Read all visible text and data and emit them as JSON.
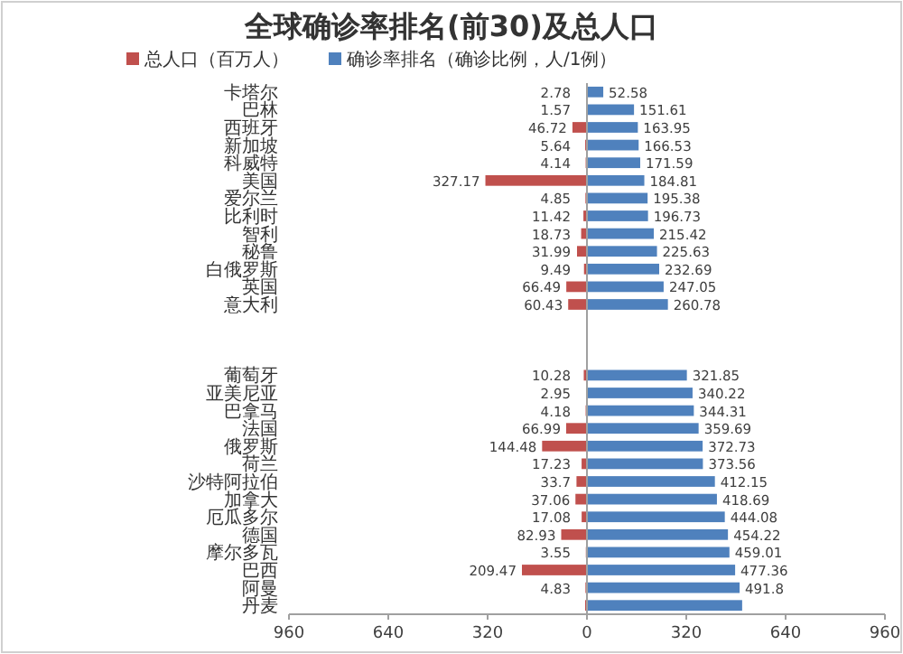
{
  "chart_data": {
    "type": "bar",
    "orientation": "horizontal",
    "title": "全球确诊率排名(前30)及总人口",
    "categories": [
      "卡塔尔",
      "巴林",
      "西班牙",
      "新加坡",
      "科威特",
      "美国",
      "爱尔兰",
      "比利时",
      "智利",
      "秘鲁",
      "白俄罗斯",
      "英国",
      "意大利",
      null,
      null,
      null,
      "葡萄牙",
      "亚美尼亚",
      "巴拿马",
      "法国",
      "俄罗斯",
      "荷兰",
      "沙特阿拉伯",
      "加拿大",
      "厄瓜多尔",
      "德国",
      "摩尔多瓦",
      "巴西",
      "阿曼",
      "丹麦"
    ],
    "series": [
      {
        "name": "总人口（百万人）",
        "color": "#c0504d",
        "axis": "x2",
        "values": [
          2.78,
          1.57,
          46.72,
          5.64,
          4.14,
          327.17,
          4.85,
          11.42,
          18.73,
          31.99,
          9.49,
          66.49,
          60.43,
          null,
          null,
          null,
          10.28,
          2.95,
          4.18,
          66.99,
          144.48,
          17.23,
          33.7,
          37.06,
          17.08,
          82.93,
          3.55,
          209.47,
          4.83,
          5.8
        ],
        "value_labels": [
          "2.78",
          "1.57",
          "46.72",
          "5.64",
          "4.14",
          "327.17",
          "4.85",
          "11.42",
          "18.73",
          "31.99",
          "9.49",
          "66.49",
          "60.43",
          null,
          null,
          null,
          "10.28",
          "2.95",
          "4.18",
          "66.99",
          "144.48",
          "17.23",
          "33.7",
          "37.06",
          "17.08",
          "82.93",
          "3.55",
          "209.47",
          "4.83",
          null
        ]
      },
      {
        "name": "确诊率排名（确诊比例，人/1例）",
        "color": "#4f81bd",
        "values": [
          52.58,
          151.61,
          163.95,
          166.53,
          171.59,
          184.81,
          195.38,
          196.73,
          215.42,
          225.63,
          232.69,
          247.05,
          260.78,
          null,
          null,
          null,
          321.85,
          340.22,
          344.31,
          359.69,
          372.73,
          373.56,
          412.15,
          418.69,
          444.08,
          454.22,
          459.01,
          477.36,
          491.8,
          500
        ],
        "value_labels": [
          "52.58",
          "151.61",
          "163.95",
          "166.53",
          "171.59",
          "184.81",
          "195.38",
          "196.73",
          "215.42",
          "225.63",
          "232.69",
          "247.05",
          "260.78",
          null,
          null,
          null,
          "321.85",
          "340.22",
          "344.31",
          "359.69",
          "372.73",
          "373.56",
          "412.15",
          "418.69",
          "444.08",
          "454.22",
          "459.01",
          "477.36",
          "491.8",
          null
        ]
      }
    ],
    "xlim": [
      -960,
      960
    ],
    "xticks": [
      0,
      320,
      640,
      960
    ],
    "x2lim": [
      960,
      -960
    ],
    "x2ticks": [
      960,
      640,
      320
    ],
    "legend": "top"
  }
}
